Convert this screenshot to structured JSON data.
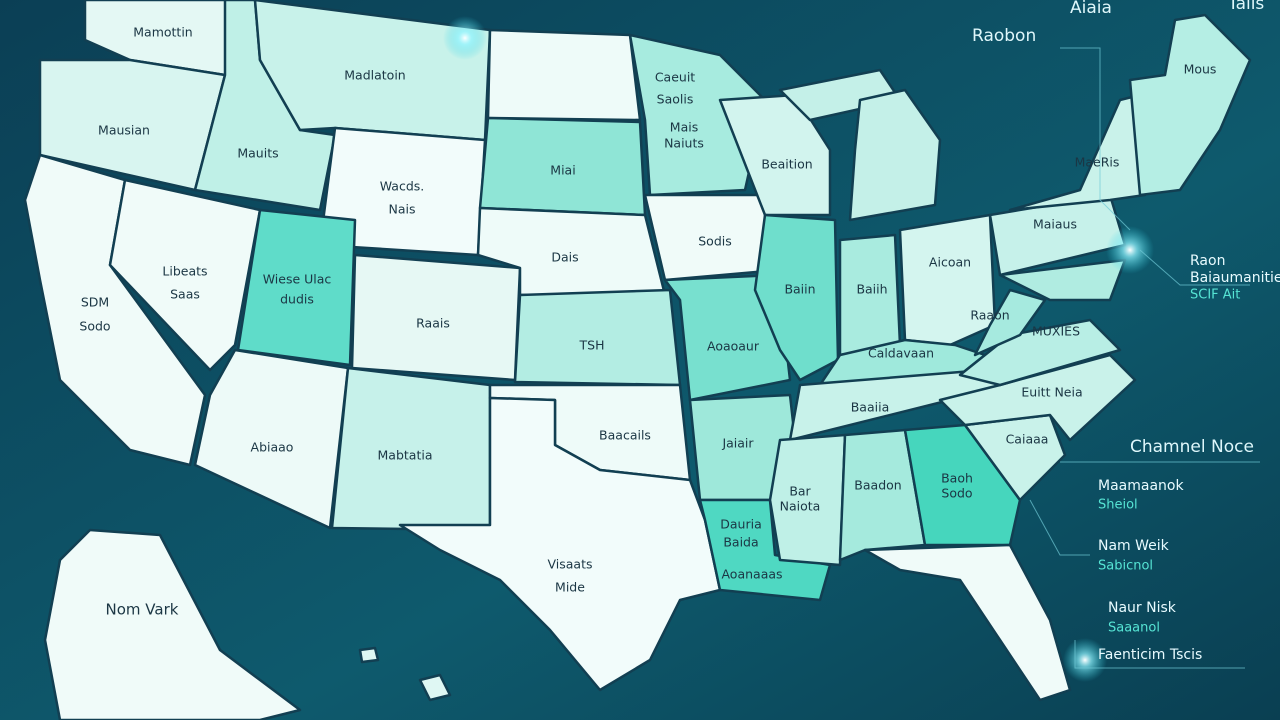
{
  "header": {
    "title": "Aiaia",
    "corner": "Taiis",
    "subtitle": "Raobon",
    "region": "Mous"
  },
  "map": {
    "labels": [
      {
        "lines": [
          "Mamottin"
        ]
      },
      {
        "lines": [
          "Madlatoin"
        ]
      },
      {
        "lines": [
          "Mausian"
        ]
      },
      {
        "lines": [
          "Mauits"
        ]
      },
      {
        "lines": [
          "Wacds.",
          "Nais"
        ]
      },
      {
        "lines": [
          "Caeuit",
          "Saolis"
        ]
      },
      {
        "lines": [
          "Mais",
          "Naiuts"
        ]
      },
      {
        "lines": [
          "Miai"
        ]
      },
      {
        "lines": [
          "Beaition"
        ]
      },
      {
        "lines": [
          "MaeRis"
        ]
      },
      {
        "lines": [
          "Sodis"
        ]
      },
      {
        "lines": [
          "Dais"
        ]
      },
      {
        "lines": [
          "Libeats",
          "Saas"
        ]
      },
      {
        "lines": [
          "Wiese Ulac",
          "dudis"
        ]
      },
      {
        "lines": [
          "SDM",
          "Sodo"
        ]
      },
      {
        "lines": [
          "Raais"
        ]
      },
      {
        "lines": [
          "TSH"
        ]
      },
      {
        "lines": [
          "Maiaus"
        ]
      },
      {
        "lines": [
          "Aicoan"
        ]
      },
      {
        "lines": [
          "Baiin"
        ]
      },
      {
        "lines": [
          "Baiih"
        ]
      },
      {
        "lines": [
          "Raaon"
        ]
      },
      {
        "lines": [
          "MUXIES"
        ]
      },
      {
        "lines": [
          "Aoaoaur"
        ]
      },
      {
        "lines": [
          "Caldavaan"
        ]
      },
      {
        "lines": [
          "Baaiia"
        ]
      },
      {
        "lines": [
          "Euitt Neia"
        ]
      },
      {
        "lines": [
          "Baacails"
        ]
      },
      {
        "lines": [
          "Abiaao"
        ]
      },
      {
        "lines": [
          "Mabtatia"
        ]
      },
      {
        "lines": [
          "Jaiair"
        ]
      },
      {
        "lines": [
          "Caiaaa"
        ]
      },
      {
        "lines": [
          "Baadon"
        ]
      },
      {
        "lines": [
          "Baoh",
          "Sodo"
        ]
      },
      {
        "lines": [
          "Bar",
          "Naiota"
        ]
      },
      {
        "lines": [
          "Dauria",
          "Baida"
        ]
      },
      {
        "lines": [
          "Aoanaaas"
        ]
      },
      {
        "lines": [
          "Visaats",
          "Mide"
        ]
      },
      {
        "lines": [
          "Nom Vark"
        ]
      }
    ]
  },
  "callout": {
    "title": "Raon",
    "lines": [
      "Baiaumanitie",
      "SCIF Ait"
    ]
  },
  "legend": {
    "title": "Chamnel Noce",
    "items": [
      {
        "name": "Maamaanok",
        "value": "Sheiol"
      },
      {
        "name": "Nam Weik",
        "value": "Sabicnol"
      },
      {
        "name": "Naur Nisk",
        "value": "Saaanol"
      }
    ],
    "footer": "Faenticim Tscis"
  }
}
